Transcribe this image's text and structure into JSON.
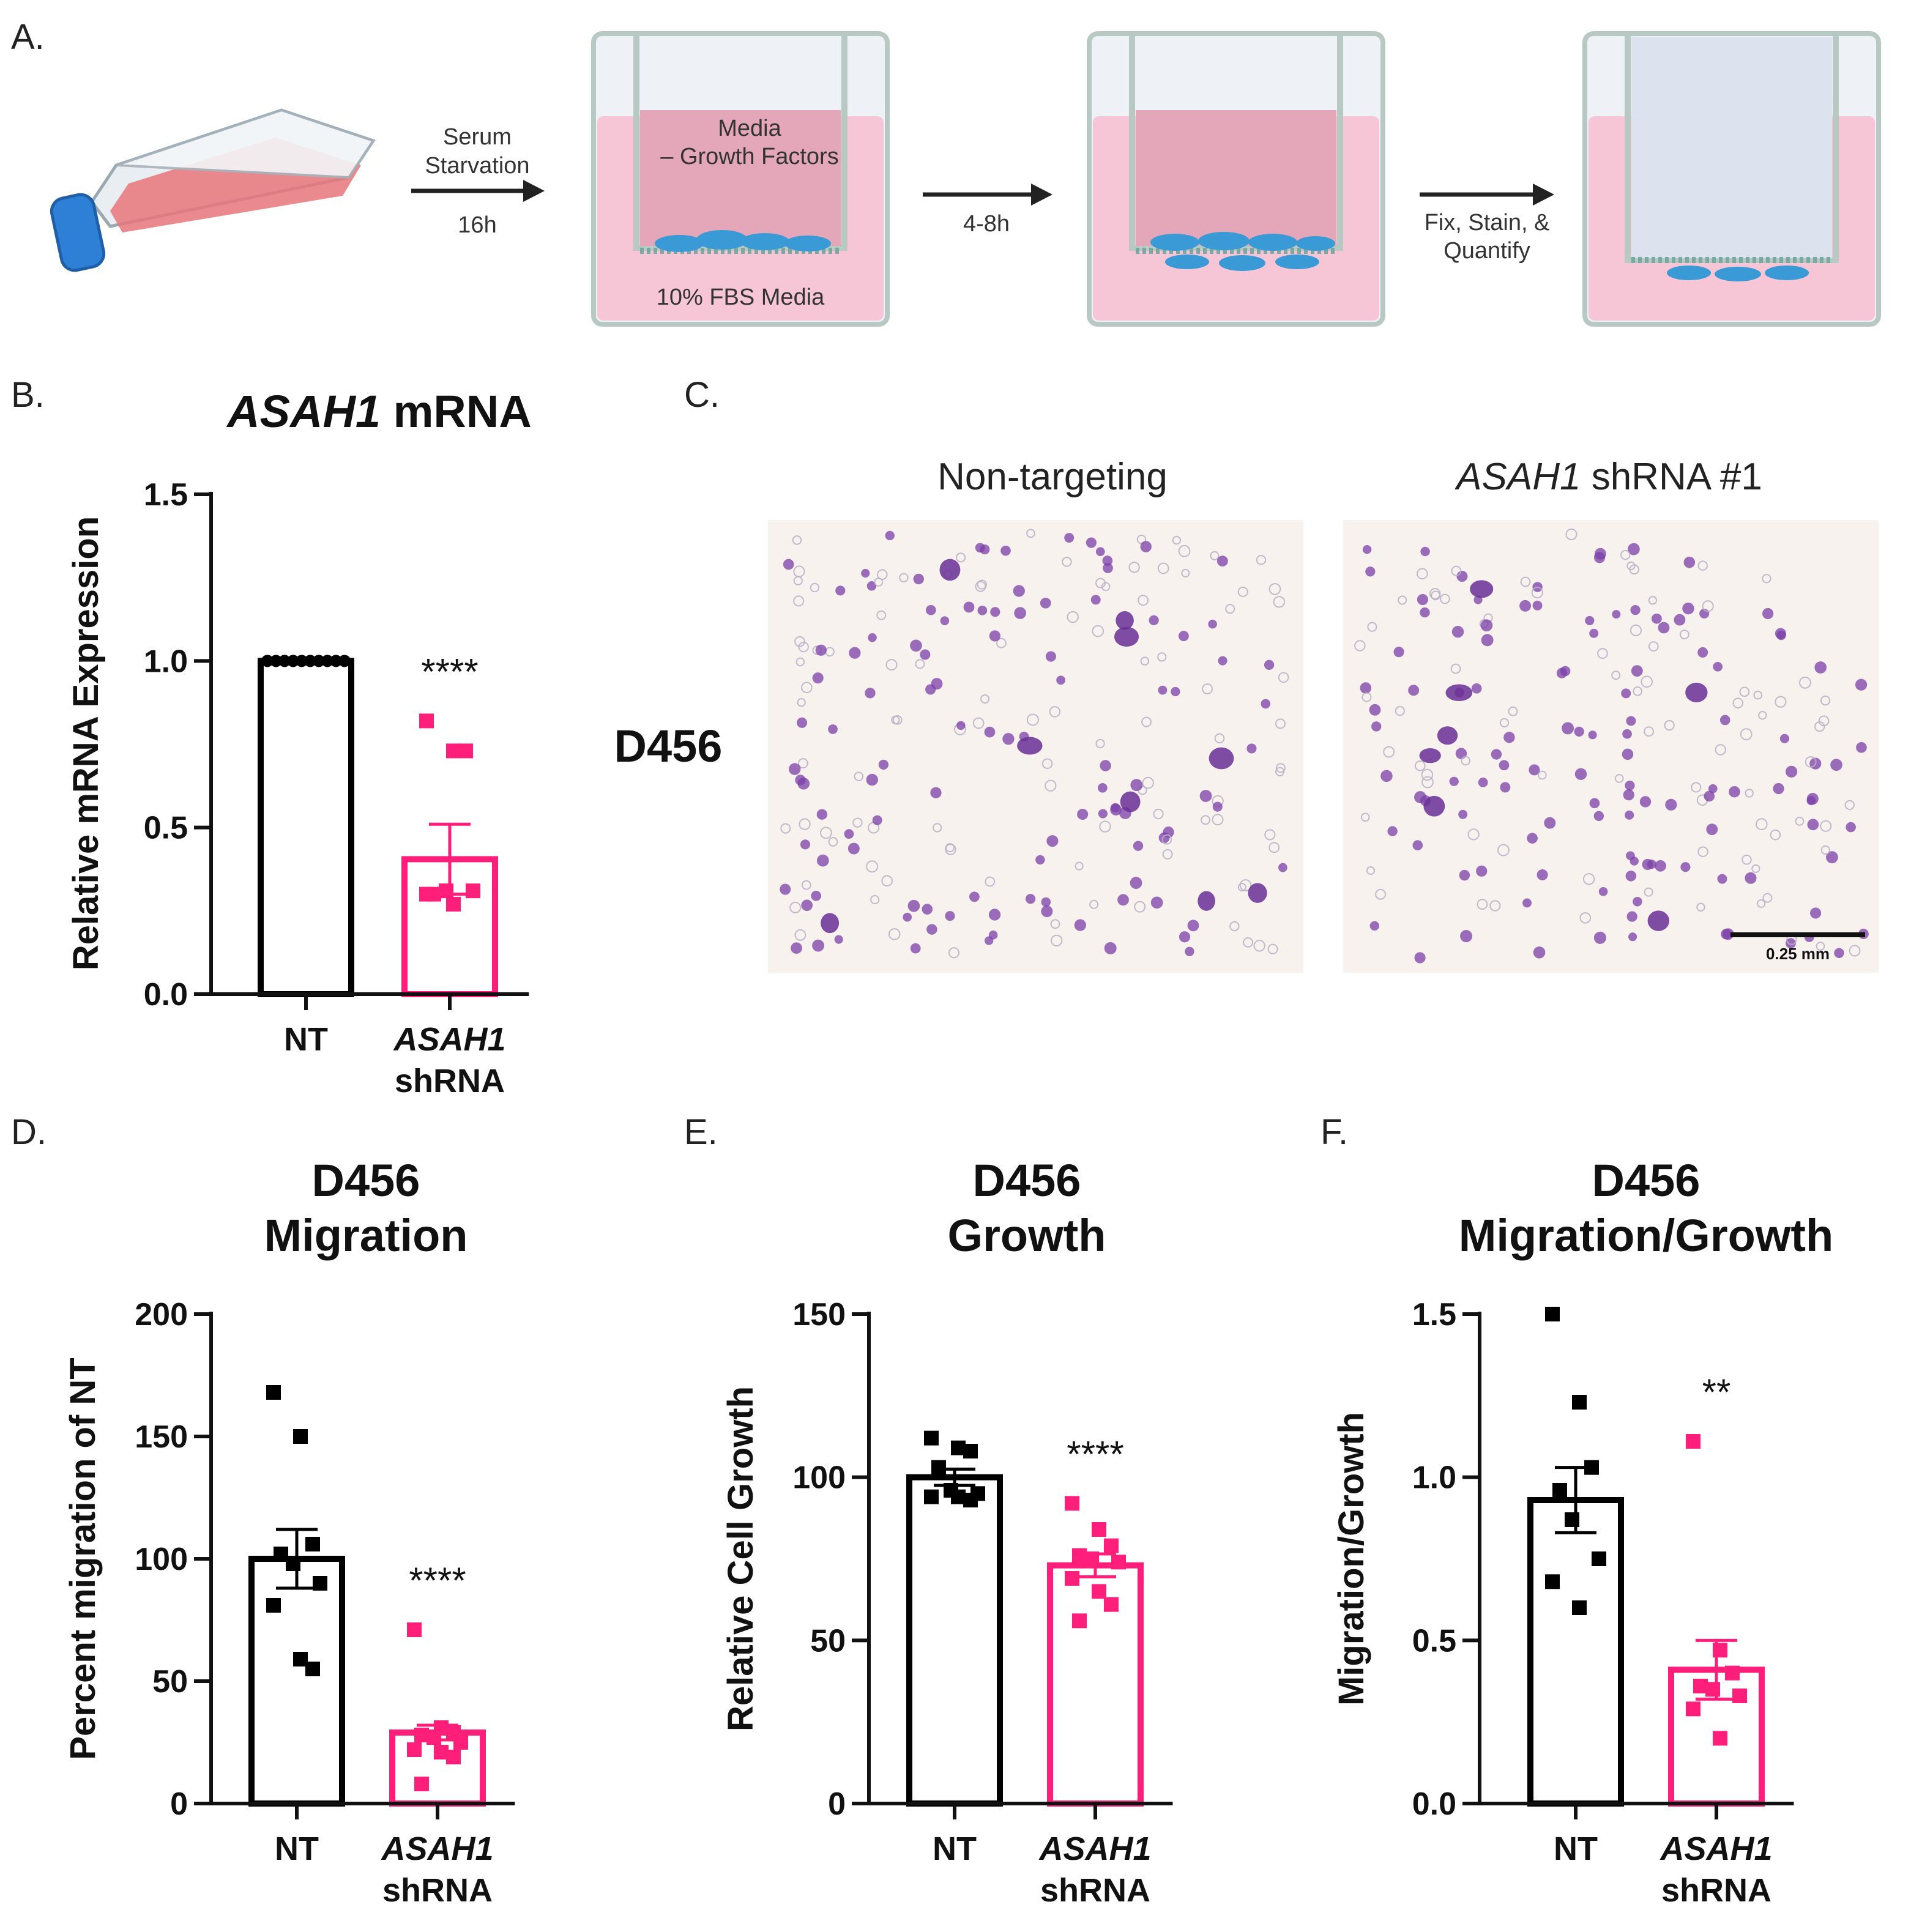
{
  "panel_labels": {
    "a": "A.",
    "b": "B.",
    "c": "C.",
    "d": "D.",
    "e": "E.",
    "f": "F."
  },
  "schematic": {
    "step1_line1": "Serum",
    "step1_line2": "Starvation",
    "step1_time": "16h",
    "upper_label_line1": "Media",
    "upper_label_line2": "– Growth Factors",
    "lower_label": "10% FBS Media",
    "step2_time": "4-8h",
    "step3_line1": "Fix, Stain, &",
    "step3_line2": "Quantify"
  },
  "images": {
    "row_label": "D456",
    "left_title": "Non-targeting",
    "right_title_gene": "ASAH1",
    "right_title_rest": " shRNA #1",
    "scale_bar": "0.25 mm"
  },
  "colors": {
    "nt": "#000000",
    "shrna": "#ff1f7a",
    "stain": "#7b3fa8"
  },
  "chart_data": [
    {
      "id": "B",
      "type": "bar",
      "title_italic": "ASAH1",
      "title_rest": " mRNA",
      "ylabel": "Relative mRNA  Expression",
      "ylim": [
        0,
        1.5
      ],
      "yticks": [
        "0.0",
        "0.5",
        "1.0",
        "1.5"
      ],
      "categories": [
        "NT",
        "ASAH1 shRNA"
      ],
      "category_lines": [
        [
          "NT"
        ],
        [
          "ASAH1",
          "shRNA"
        ]
      ],
      "means": [
        1.0,
        0.405
      ],
      "sem": [
        0,
        0.105
      ],
      "points": [
        [
          1.0,
          1.0,
          1.0,
          1.0,
          1.0,
          1.0,
          1.0,
          1.0,
          1.0,
          1.0
        ],
        [
          0.82,
          0.73,
          0.73,
          0.3,
          0.31,
          0.31,
          0.3,
          0.27
        ]
      ],
      "significance": "****"
    },
    {
      "id": "D",
      "type": "bar",
      "title_lines": [
        "D456",
        "Migration"
      ],
      "ylabel": "Percent migration of NT",
      "ylim": [
        0,
        200
      ],
      "yticks": [
        "0",
        "50",
        "100",
        "150",
        "200"
      ],
      "categories": [
        "NT",
        "ASAH1 shRNA"
      ],
      "category_lines": [
        [
          "NT"
        ],
        [
          "ASAH1",
          "shRNA"
        ]
      ],
      "means": [
        100,
        29
      ],
      "sem": [
        12,
        3
      ],
      "points": [
        [
          168,
          150,
          106,
          102,
          98,
          90,
          81,
          59,
          55
        ],
        [
          71,
          31,
          29,
          28,
          27,
          25,
          22,
          21,
          19,
          8
        ]
      ],
      "significance": "****"
    },
    {
      "id": "E",
      "type": "bar",
      "title_lines": [
        "D456",
        "Growth"
      ],
      "ylabel": "Relative Cell Growth",
      "ylim": [
        0,
        150
      ],
      "yticks": [
        "0",
        "50",
        "100",
        "150"
      ],
      "categories": [
        "NT",
        "ASAH1 shRNA"
      ],
      "category_lines": [
        [
          "NT"
        ],
        [
          "ASAH1",
          "shRNA"
        ]
      ],
      "means": [
        100,
        73
      ],
      "sem": [
        2.5,
        3.5
      ],
      "points": [
        [
          112,
          109,
          108,
          103,
          96,
          95,
          94,
          94,
          93
        ],
        [
          92,
          84,
          79,
          76,
          75,
          74,
          69,
          65,
          61,
          56
        ]
      ],
      "significance": "****"
    },
    {
      "id": "F",
      "type": "bar",
      "title_lines": [
        "D456",
        "Migration/Growth"
      ],
      "ylabel": "Migration/Growth",
      "ylim": [
        0,
        1.5
      ],
      "yticks": [
        "0.0",
        "0.5",
        "1.0",
        "1.5"
      ],
      "categories": [
        "NT",
        "ASAH1 shRNA"
      ],
      "category_lines": [
        [
          "NT"
        ],
        [
          "ASAH1",
          "shRNA"
        ]
      ],
      "means": [
        0.93,
        0.41
      ],
      "sem": [
        0.1,
        0.09
      ],
      "points": [
        [
          1.5,
          1.23,
          1.03,
          0.96,
          0.87,
          0.75,
          0.68,
          0.6
        ],
        [
          1.11,
          0.47,
          0.4,
          0.36,
          0.35,
          0.33,
          0.29,
          0.2
        ]
      ],
      "significance": "**"
    }
  ]
}
